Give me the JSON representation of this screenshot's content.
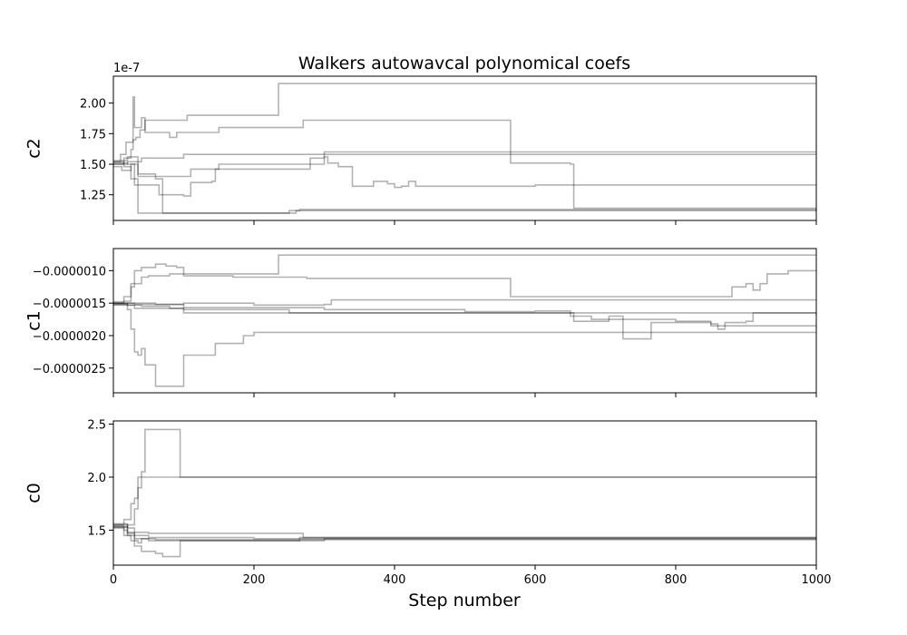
{
  "chart_data": {
    "type": "line",
    "title": "Walkers autowavcal polynomical coefs",
    "xlabel": "Step number",
    "xlim": [
      0,
      1000
    ],
    "x_ticks": [
      0,
      200,
      400,
      600,
      800,
      1000
    ],
    "line_color": "#000000",
    "line_opacity": 0.3,
    "grid": false,
    "legend": "none",
    "panels": [
      {
        "ylabel": "c2",
        "offset_text": "1e-7",
        "ylim": [
          1.04,
          2.22
        ],
        "y_ticks": [
          1.25,
          1.5,
          1.75,
          2.0
        ],
        "y_tick_labels": [
          "1.25",
          "1.50",
          "1.75",
          "2.00"
        ],
        "show_x_tick_labels": false,
        "walkers": [
          [
            [
              0,
              1.52
            ],
            [
              10,
              1.58
            ],
            [
              18,
              1.68
            ],
            [
              28,
              1.7
            ],
            [
              32,
              1.72
            ],
            [
              38,
              1.78
            ],
            [
              45,
              1.86
            ],
            [
              100,
              1.86
            ],
            [
              105,
              1.9
            ],
            [
              230,
              1.9
            ],
            [
              235,
              2.16
            ],
            [
              1000,
              2.15
            ]
          ],
          [
            [
              0,
              1.5
            ],
            [
              15,
              1.55
            ],
            [
              25,
              1.62
            ],
            [
              28,
              2.05
            ],
            [
              30,
              1.8
            ],
            [
              40,
              1.88
            ],
            [
              45,
              1.76
            ],
            [
              80,
              1.72
            ],
            [
              90,
              1.76
            ],
            [
              140,
              1.76
            ],
            [
              150,
              1.8
            ],
            [
              260,
              1.8
            ],
            [
              270,
              1.86
            ],
            [
              560,
              1.86
            ],
            [
              565,
              1.51
            ],
            [
              650,
              1.5
            ],
            [
              655,
              1.14
            ],
            [
              1000,
              1.12
            ]
          ],
          [
            [
              0,
              1.48
            ],
            [
              12,
              1.45
            ],
            [
              25,
              1.5
            ],
            [
              35,
              1.4
            ],
            [
              100,
              1.4
            ],
            [
              110,
              1.46
            ],
            [
              145,
              1.46
            ],
            [
              150,
              1.5
            ],
            [
              280,
              1.5
            ],
            [
              300,
              1.6
            ],
            [
              1000,
              1.6
            ]
          ],
          [
            [
              0,
              1.51
            ],
            [
              20,
              1.5
            ],
            [
              30,
              1.33
            ],
            [
              60,
              1.33
            ],
            [
              65,
              1.25
            ],
            [
              100,
              1.24
            ],
            [
              110,
              1.35
            ],
            [
              140,
              1.36
            ],
            [
              145,
              1.46
            ],
            [
              270,
              1.46
            ],
            [
              280,
              1.55
            ],
            [
              300,
              1.56
            ],
            [
              305,
              1.51
            ],
            [
              320,
              1.48
            ],
            [
              340,
              1.32
            ],
            [
              360,
              1.32
            ],
            [
              370,
              1.36
            ],
            [
              390,
              1.34
            ],
            [
              400,
              1.31
            ],
            [
              410,
              1.32
            ],
            [
              420,
              1.36
            ],
            [
              430,
              1.32
            ],
            [
              450,
              1.32
            ],
            [
              590,
              1.32
            ],
            [
              600,
              1.33
            ],
            [
              1000,
              1.33
            ]
          ],
          [
            [
              0,
              1.52
            ],
            [
              15,
              1.48
            ],
            [
              25,
              1.38
            ],
            [
              35,
              1.1
            ],
            [
              260,
              1.12
            ],
            [
              265,
              1.13
            ],
            [
              1000,
              1.11
            ]
          ],
          [
            [
              0,
              1.53
            ],
            [
              20,
              1.56
            ],
            [
              35,
              1.42
            ],
            [
              60,
              1.38
            ],
            [
              70,
              1.1
            ],
            [
              200,
              1.1
            ],
            [
              250,
              1.12
            ],
            [
              400,
              1.12
            ],
            [
              1000,
              1.11
            ]
          ],
          [
            [
              0,
              1.5
            ],
            [
              20,
              1.52
            ],
            [
              40,
              1.55
            ],
            [
              100,
              1.58
            ],
            [
              1000,
              1.58
            ]
          ]
        ]
      },
      {
        "ylabel": "c1",
        "offset_text": "",
        "ylim": [
          -2.88e-06,
          -6.6e-07
        ],
        "y_ticks": [
          -1e-06,
          -1.5e-06,
          -2e-06,
          -2.5e-06
        ],
        "y_tick_labels": [
          "−0.0000010",
          "−0.0000015",
          "−0.0000020",
          "−0.0000025"
        ],
        "show_x_tick_labels": false,
        "walkers": [
          [
            [
              0,
              -1.5e-06
            ],
            [
              15,
              -1.47e-06
            ],
            [
              25,
              -1.25e-06
            ],
            [
              30,
              -1.2e-06
            ],
            [
              40,
              -1.1e-06
            ],
            [
              50,
              -1.08e-06
            ],
            [
              80,
              -1.05e-06
            ],
            [
              230,
              -1.05e-06
            ],
            [
              235,
              -7.6e-07
            ],
            [
              1000,
              -7.6e-07
            ]
          ],
          [
            [
              0,
              -1.48e-06
            ],
            [
              15,
              -1.4e-06
            ],
            [
              25,
              -1.2e-06
            ],
            [
              30,
              -1e-06
            ],
            [
              40,
              -9.5e-07
            ],
            [
              60,
              -9e-07
            ],
            [
              75,
              -9.3e-07
            ],
            [
              90,
              -9.5e-07
            ],
            [
              100,
              -1.08e-06
            ],
            [
              170,
              -1.1e-06
            ],
            [
              270,
              -1.1e-06
            ],
            [
              275,
              -1.12e-06
            ],
            [
              560,
              -1.12e-06
            ],
            [
              565,
              -1.4e-06
            ],
            [
              870,
              -1.4e-06
            ],
            [
              880,
              -1.25e-06
            ],
            [
              900,
              -1.2e-06
            ],
            [
              910,
              -1.3e-06
            ],
            [
              920,
              -1.2e-06
            ],
            [
              930,
              -1.05e-06
            ],
            [
              960,
              -1e-06
            ],
            [
              1000,
              -1e-06
            ]
          ],
          [
            [
              0,
              -1.52e-06
            ],
            [
              20,
              -1.6e-06
            ],
            [
              25,
              -1.9e-06
            ],
            [
              30,
              -2.25e-06
            ],
            [
              35,
              -2.3e-06
            ],
            [
              40,
              -2.2e-06
            ],
            [
              45,
              -2.45e-06
            ],
            [
              60,
              -2.78e-06
            ],
            [
              95,
              -2.78e-06
            ],
            [
              100,
              -2.3e-06
            ],
            [
              140,
              -2.3e-06
            ],
            [
              145,
              -2.12e-06
            ],
            [
              180,
              -2.12e-06
            ],
            [
              185,
              -2e-06
            ],
            [
              200,
              -1.95e-06
            ],
            [
              1000,
              -1.95e-06
            ]
          ],
          [
            [
              0,
              -1.5e-06
            ],
            [
              20,
              -1.53e-06
            ],
            [
              40,
              -1.55e-06
            ],
            [
              80,
              -1.58e-06
            ],
            [
              100,
              -1.65e-06
            ],
            [
              1000,
              -1.68e-06
            ]
          ],
          [
            [
              0,
              -1.51e-06
            ],
            [
              20,
              -1.5e-06
            ],
            [
              60,
              -1.52e-06
            ],
            [
              100,
              -1.5e-06
            ],
            [
              200,
              -1.53e-06
            ],
            [
              300,
              -1.52e-06
            ],
            [
              310,
              -1.45e-06
            ],
            [
              1000,
              -1.45e-06
            ]
          ],
          [
            [
              0,
              -1.53e-06
            ],
            [
              30,
              -1.58e-06
            ],
            [
              100,
              -1.6e-06
            ],
            [
              250,
              -1.65e-06
            ],
            [
              400,
              -1.65e-06
            ],
            [
              650,
              -1.65e-06
            ],
            [
              655,
              -1.78e-06
            ],
            [
              700,
              -1.78e-06
            ],
            [
              705,
              -1.7e-06
            ],
            [
              720,
              -1.7e-06
            ],
            [
              725,
              -2.05e-06
            ],
            [
              760,
              -2.05e-06
            ],
            [
              765,
              -1.8e-06
            ],
            [
              800,
              -1.8e-06
            ],
            [
              810,
              -1.8e-06
            ],
            [
              850,
              -1.82e-06
            ],
            [
              860,
              -1.9e-06
            ],
            [
              870,
              -1.8e-06
            ],
            [
              900,
              -1.78e-06
            ],
            [
              910,
              -1.65e-06
            ],
            [
              1000,
              -1.65e-06
            ]
          ],
          [
            [
              0,
              -1.5e-06
            ],
            [
              30,
              -1.52e-06
            ],
            [
              100,
              -1.57e-06
            ],
            [
              300,
              -1.6e-06
            ],
            [
              500,
              -1.63e-06
            ],
            [
              600,
              -1.62e-06
            ],
            [
              650,
              -1.7e-06
            ],
            [
              680,
              -1.75e-06
            ],
            [
              800,
              -1.78e-06
            ],
            [
              850,
              -1.85e-06
            ],
            [
              1000,
              -1.87e-06
            ]
          ]
        ]
      },
      {
        "ylabel": "c0",
        "offset_text": "",
        "ylim": [
          1.17,
          2.53
        ],
        "y_ticks": [
          1.5,
          2.0,
          2.5
        ],
        "y_tick_labels": [
          "1.5",
          "2.0",
          "2.5"
        ],
        "show_x_tick_labels": true,
        "walkers": [
          [
            [
              0,
              1.55
            ],
            [
              15,
              1.6
            ],
            [
              25,
              1.75
            ],
            [
              30,
              1.8
            ],
            [
              35,
              2.0
            ],
            [
              40,
              2.05
            ],
            [
              45,
              2.45
            ],
            [
              92,
              2.45
            ],
            [
              95,
              2.0
            ],
            [
              1000,
              2.0
            ]
          ],
          [
            [
              0,
              1.53
            ],
            [
              20,
              1.55
            ],
            [
              30,
              1.7
            ],
            [
              35,
              1.9
            ],
            [
              40,
              2.0
            ],
            [
              1000,
              2.0
            ]
          ],
          [
            [
              0,
              1.52
            ],
            [
              15,
              1.5
            ],
            [
              20,
              1.47
            ],
            [
              30,
              1.45
            ],
            [
              50,
              1.43
            ],
            [
              100,
              1.43
            ],
            [
              200,
              1.42
            ],
            [
              1000,
              1.42
            ]
          ],
          [
            [
              0,
              1.54
            ],
            [
              15,
              1.45
            ],
            [
              25,
              1.4
            ],
            [
              35,
              1.38
            ],
            [
              40,
              1.42
            ],
            [
              50,
              1.4
            ],
            [
              100,
              1.4
            ],
            [
              260,
              1.4
            ],
            [
              265,
              1.43
            ],
            [
              1000,
              1.43
            ]
          ],
          [
            [
              0,
              1.56
            ],
            [
              20,
              1.52
            ],
            [
              30,
              1.48
            ],
            [
              50,
              1.47
            ],
            [
              260,
              1.47
            ],
            [
              270,
              1.43
            ],
            [
              1000,
              1.42
            ]
          ],
          [
            [
              0,
              1.53
            ],
            [
              20,
              1.45
            ],
            [
              30,
              1.35
            ],
            [
              40,
              1.3
            ],
            [
              60,
              1.28
            ],
            [
              70,
              1.25
            ],
            [
              90,
              1.25
            ],
            [
              95,
              1.4
            ],
            [
              200,
              1.4
            ],
            [
              300,
              1.42
            ],
            [
              1000,
              1.42
            ]
          ],
          [
            [
              0,
              1.55
            ],
            [
              20,
              1.48
            ],
            [
              30,
              1.42
            ],
            [
              60,
              1.41
            ],
            [
              100,
              1.41
            ],
            [
              1000,
              1.41
            ]
          ]
        ]
      }
    ]
  }
}
